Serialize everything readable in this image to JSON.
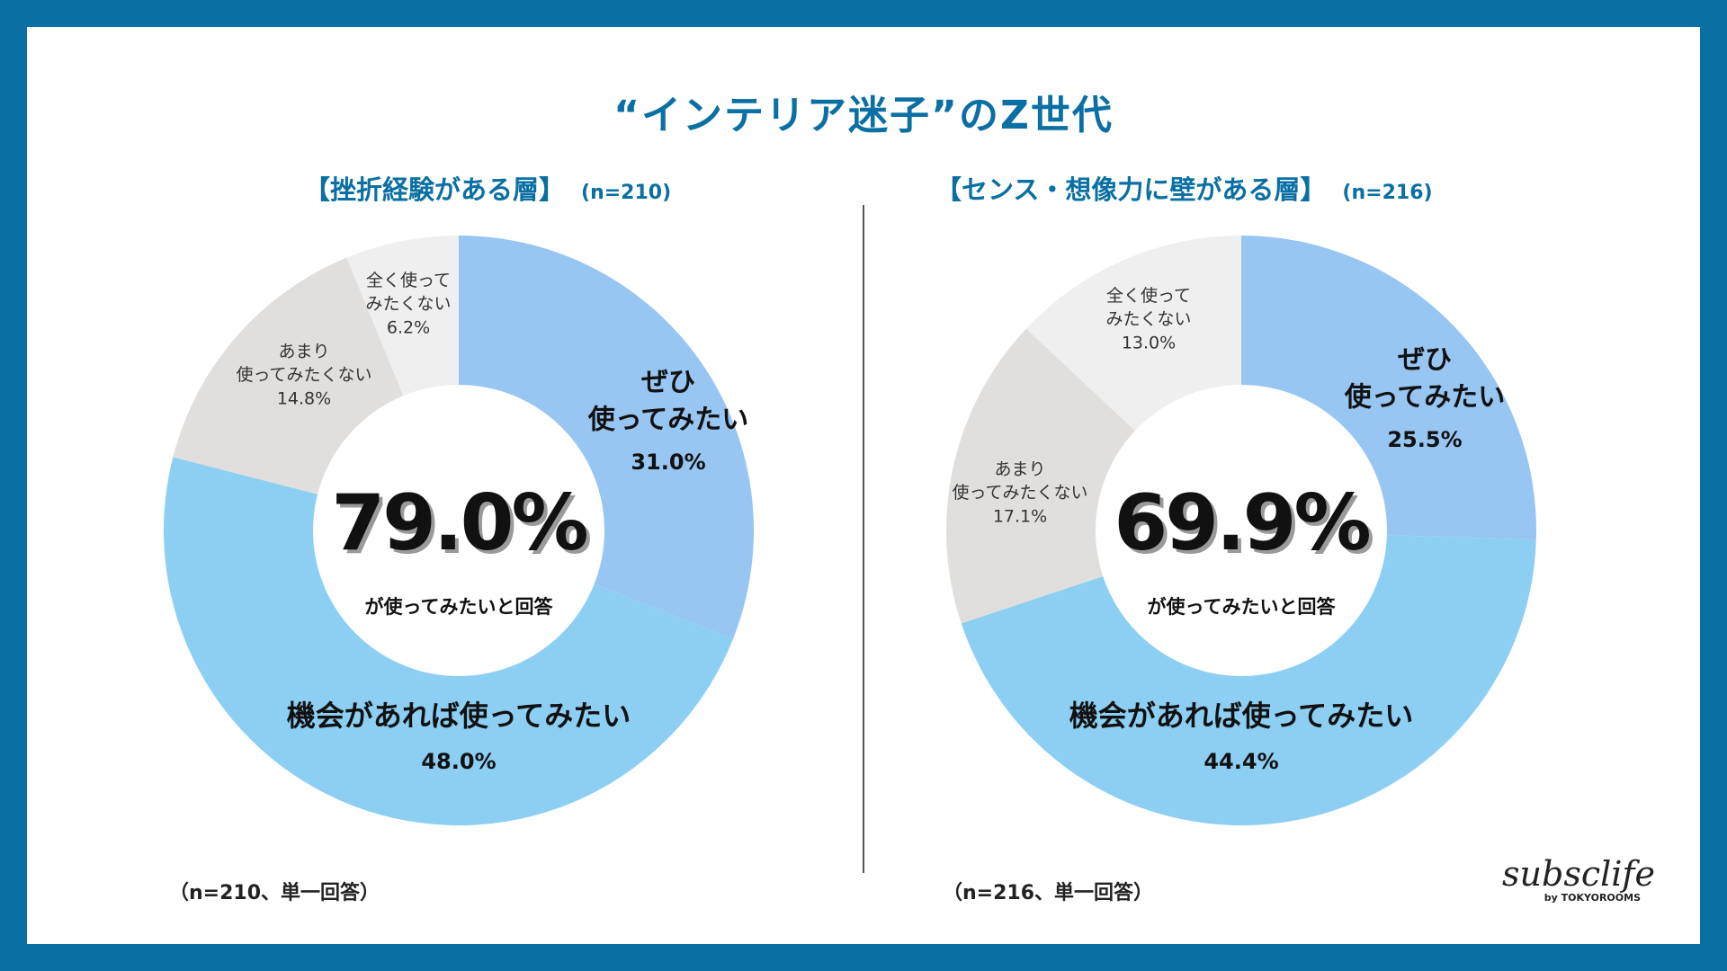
{
  "title": "“インテリア迷子”のZ世代",
  "center_caption": "が使ってみたいと回答",
  "logo": {
    "wordmark": "subsclife",
    "byline": "by TOKYOROOMS"
  },
  "colors": {
    "frame": "#0a6fa3",
    "zehi": "#98c6f2",
    "kikai": "#8ccff3",
    "amari": "#e0dfdd",
    "mattaku": "#efefef"
  },
  "chart_data": [
    {
      "type": "pie",
      "title": "【挫折経験がある層】",
      "n_label": "(n=210)",
      "footnote": "（n=210、単一回答）",
      "center_value": "79.0%",
      "slices": [
        {
          "label": [
            "ぜひ",
            "使ってみたい"
          ],
          "value": 31.0,
          "value_label": "31.0%"
        },
        {
          "label": [
            "機会があれば使ってみたい"
          ],
          "value": 48.0,
          "value_label": "48.0%"
        },
        {
          "label": [
            "あまり",
            "使ってみたくない"
          ],
          "value": 14.8,
          "value_label": "14.8%"
        },
        {
          "label": [
            "全く使って",
            "みたくない"
          ],
          "value": 6.2,
          "value_label": "6.2%"
        }
      ]
    },
    {
      "type": "pie",
      "title": "【センス・想像力に壁がある層】",
      "n_label": "(n=216)",
      "footnote": "（n=216、単一回答）",
      "center_value": "69.9%",
      "slices": [
        {
          "label": [
            "ぜひ",
            "使ってみたい"
          ],
          "value": 25.5,
          "value_label": "25.5%"
        },
        {
          "label": [
            "機会があれば使ってみたい"
          ],
          "value": 44.4,
          "value_label": "44.4%"
        },
        {
          "label": [
            "あまり",
            "使ってみたくない"
          ],
          "value": 17.1,
          "value_label": "17.1%"
        },
        {
          "label": [
            "全く使って",
            "みたくない"
          ],
          "value": 13.0,
          "value_label": "13.0%"
        }
      ]
    }
  ]
}
